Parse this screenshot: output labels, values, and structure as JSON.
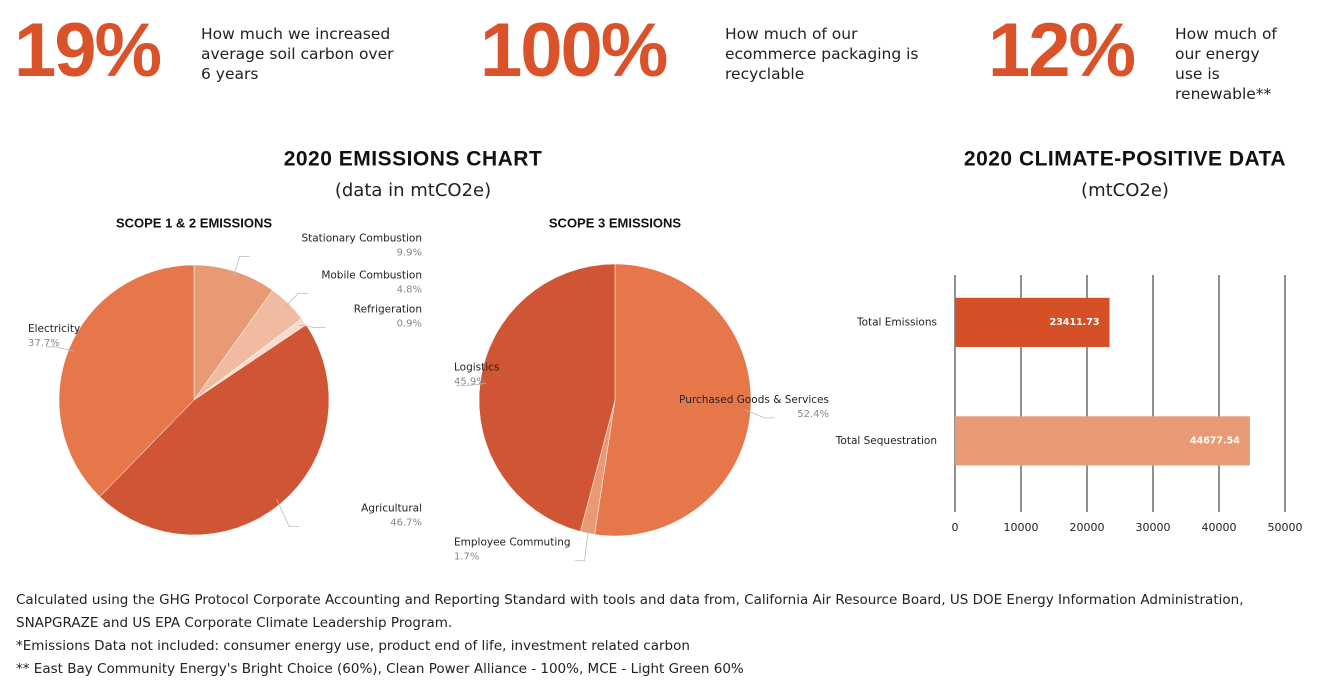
{
  "stats": [
    {
      "value": "19%",
      "text": "How much we increased average soil carbon over 6 years"
    },
    {
      "value": "100%",
      "text": "How much of our ecommerce packaging is recyclable"
    },
    {
      "value": "12%",
      "text": "How much of our energy use is renewable**"
    }
  ],
  "emissions_heading": {
    "title": "2020 EMISSIONS CHART",
    "subtitle": "(data in mtCO2e)"
  },
  "climate_heading": {
    "title": "2020 CLIMATE-POSITIVE DATA",
    "subtitle": "(mtCO2e)"
  },
  "chart_data": [
    {
      "type": "pie",
      "title": "SCOPE 1 & 2 EMISSIONS",
      "categories": [
        "Stationary Combustion",
        "Mobile Combustion",
        "Refrigeration",
        "Agricultural",
        "Electricity"
      ],
      "values": [
        9.9,
        4.8,
        0.9,
        46.7,
        37.7
      ],
      "value_labels": [
        "9.9%",
        "4.8%",
        "0.9%",
        "46.7%",
        "37.7%"
      ],
      "colors": [
        "#e89a74",
        "#f0bba0",
        "#f7dccd",
        "#d05534",
        "#e5774a"
      ]
    },
    {
      "type": "pie",
      "title": "SCOPE 3 EMISSIONS",
      "categories": [
        "Purchased Goods & Services",
        "Employee Commuting",
        "Logistics"
      ],
      "values": [
        52.4,
        1.7,
        45.9
      ],
      "value_labels": [
        "52.4%",
        "1.7%",
        "45.9%"
      ],
      "colors": [
        "#e5774a",
        "#e89a74",
        "#d05534"
      ]
    },
    {
      "type": "bar",
      "orientation": "horizontal",
      "categories": [
        "Total Emissions",
        "Total Sequestration"
      ],
      "values": [
        23411.73,
        44677.54
      ],
      "colors": [
        "#d65027",
        "#e89a74"
      ],
      "xlim": [
        0,
        50000
      ],
      "xticks": [
        0,
        10000,
        20000,
        30000,
        40000,
        50000
      ],
      "grid": true
    }
  ],
  "footnotes": [
    "Calculated using the GHG Protocol Corporate Accounting and Reporting Standard with tools and data from, California Air Resource Board, US DOE Energy Information Administration, SNAPGRAZE and US EPA Corporate Climate Leadership Program.",
    "*Emissions Data not included: consumer energy use, product end of life, investment related carbon",
    "** East Bay Community Energy's Bright Choice (60%), Clean Power Alliance - 100%, MCE - Light Green 60%"
  ]
}
